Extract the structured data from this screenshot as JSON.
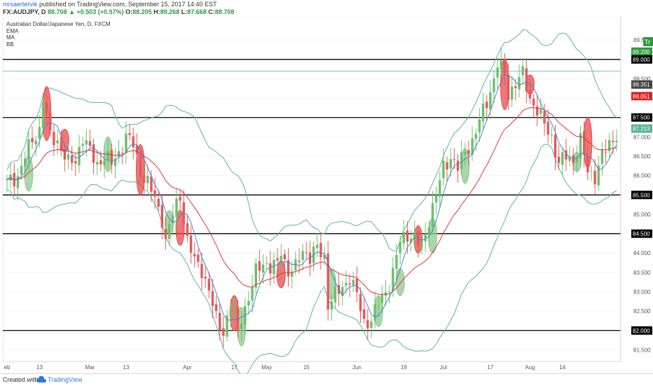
{
  "header": {
    "user": "mrsaertervik",
    "published": " published on TradingView.com, September 15, 2017 14:40 EST",
    "symbol": "FX:AUDJPY, D",
    "last": "88.708",
    "change": "+0.503 (+0.57%)",
    "open": "88.205",
    "high": "89.268",
    "low": "87.668",
    "close": "88.708"
  },
  "footer": {
    "created_with": "Created with",
    "brand": "TradingView"
  },
  "colors": {
    "bull": "#6cbf6c",
    "bear": "#e05a5a",
    "ema": "#d9363e",
    "ma": "#4b86c8",
    "bb": "#57b49b",
    "green_highlight": "#8fc88f",
    "red_highlight": "#e84a4a",
    "level_line": "#000000"
  },
  "chart_data": {
    "type": "candlestick",
    "title": "Australian Dollar/Japanese Yen, D, FXCM",
    "indicators": [
      "EMA",
      "MA",
      "BB"
    ],
    "ylim": [
      81.2,
      90.1
    ],
    "y_ticks": [
      "89.500",
      "89.000",
      "88.500",
      "88.000",
      "87.500",
      "87.000",
      "86.500",
      "86.000",
      "85.500",
      "85.000",
      "84.500",
      "84.000",
      "83.500",
      "83.000",
      "82.500",
      "82.000",
      "81.500"
    ],
    "x_ticks": [
      {
        "i": 0,
        "label": "eb"
      },
      {
        "i": 9,
        "label": "13"
      },
      {
        "i": 23,
        "label": "Mar"
      },
      {
        "i": 33,
        "label": "13"
      },
      {
        "i": 50,
        "label": "Apr"
      },
      {
        "i": 63,
        "label": "17"
      },
      {
        "i": 72,
        "label": "May"
      },
      {
        "i": 83,
        "label": "15"
      },
      {
        "i": 97,
        "label": "Jun"
      },
      {
        "i": 110,
        "label": "19"
      },
      {
        "i": 121,
        "label": "Jul"
      },
      {
        "i": 134,
        "label": "17"
      },
      {
        "i": 145,
        "label": "Aug"
      },
      {
        "i": 154,
        "label": "14"
      }
    ],
    "horizontal_levels": [
      89.0,
      87.5,
      85.5,
      84.5,
      82.0
    ],
    "thin_level": 88.7,
    "price_labels": [
      {
        "value": 89.2,
        "text": "89.200",
        "bg": "#2e9a3c"
      },
      {
        "value": 89.0,
        "text": "89.000",
        "bg": "#000000"
      },
      {
        "value": 88.351,
        "text": "88.351",
        "bg": "#444444"
      },
      {
        "value": 88.051,
        "text": "88.051",
        "bg": "#e02020"
      },
      {
        "value": 87.5,
        "text": "87.500",
        "bg": "#000000"
      },
      {
        "value": 87.213,
        "text": "87.213",
        "bg": "#57b49b"
      },
      {
        "value": 85.5,
        "text": "85.500",
        "bg": "#000000"
      },
      {
        "value": 84.5,
        "text": "84.500",
        "bg": "#000000"
      },
      {
        "value": 82.0,
        "text": "82.000",
        "bg": "#000000"
      }
    ],
    "waypoints": [
      [
        0,
        85.8
      ],
      [
        3,
        86.0
      ],
      [
        5,
        86.5
      ],
      [
        7,
        86.9
      ],
      [
        9,
        87.2
      ],
      [
        10,
        88.0
      ],
      [
        12,
        87.0
      ],
      [
        14,
        86.9
      ],
      [
        17,
        86.3
      ],
      [
        19,
        86.4
      ],
      [
        21,
        87.0
      ],
      [
        23,
        86.6
      ],
      [
        25,
        86.3
      ],
      [
        27,
        86.5
      ],
      [
        29,
        86.3
      ],
      [
        31,
        86.6
      ],
      [
        33,
        87.0
      ],
      [
        35,
        86.8
      ],
      [
        37,
        86.1
      ],
      [
        39,
        85.8
      ],
      [
        41,
        85.4
      ],
      [
        43,
        84.9
      ],
      [
        44,
        84.3
      ],
      [
        46,
        85.0
      ],
      [
        48,
        85.5
      ],
      [
        50,
        84.3
      ],
      [
        52,
        83.8
      ],
      [
        54,
        83.6
      ],
      [
        56,
        83.0
      ],
      [
        58,
        82.3
      ],
      [
        60,
        82.0
      ],
      [
        62,
        82.6
      ],
      [
        63,
        82.5
      ],
      [
        64,
        81.9
      ],
      [
        65,
        82.4
      ],
      [
        67,
        82.8
      ],
      [
        69,
        83.5
      ],
      [
        71,
        83.8
      ],
      [
        73,
        83.6
      ],
      [
        75,
        83.7
      ],
      [
        76,
        84.1
      ],
      [
        78,
        83.5
      ],
      [
        80,
        83.6
      ],
      [
        82,
        84.1
      ],
      [
        84,
        83.9
      ],
      [
        86,
        84.1
      ],
      [
        88,
        83.9
      ],
      [
        89,
        82.7
      ],
      [
        91,
        82.9
      ],
      [
        93,
        83.1
      ],
      [
        95,
        83.4
      ],
      [
        97,
        82.9
      ],
      [
        99,
        82.2
      ],
      [
        101,
        82.3
      ],
      [
        103,
        82.7
      ],
      [
        105,
        83.0
      ],
      [
        107,
        83.5
      ],
      [
        109,
        84.3
      ],
      [
        111,
        84.5
      ],
      [
        113,
        84.4
      ],
      [
        115,
        84.1
      ],
      [
        117,
        84.9
      ],
      [
        119,
        85.5
      ],
      [
        121,
        86.2
      ],
      [
        123,
        86.5
      ],
      [
        125,
        86.2
      ],
      [
        127,
        86.6
      ],
      [
        129,
        86.9
      ],
      [
        131,
        87.4
      ],
      [
        133,
        87.9
      ],
      [
        135,
        88.5
      ],
      [
        136,
        88.9
      ],
      [
        138,
        88.6
      ],
      [
        139,
        88.1
      ],
      [
        141,
        88.4
      ],
      [
        143,
        88.6
      ],
      [
        145,
        88.0
      ],
      [
        147,
        87.7
      ],
      [
        149,
        87.3
      ],
      [
        151,
        87.0
      ],
      [
        153,
        86.3
      ],
      [
        155,
        86.5
      ],
      [
        157,
        86.4
      ],
      [
        159,
        86.9
      ],
      [
        161,
        86.1
      ],
      [
        163,
        86.0
      ],
      [
        165,
        86.5
      ],
      [
        167,
        86.8
      ],
      [
        169,
        87.1
      ]
    ],
    "highlights": [
      {
        "i": 6,
        "low": 85.6,
        "high": 86.5,
        "color": "green"
      },
      {
        "i": 11,
        "low": 86.9,
        "high": 88.3,
        "color": "red"
      },
      {
        "i": 16,
        "low": 86.6,
        "high": 87.2,
        "color": "red"
      },
      {
        "i": 28,
        "low": 86.1,
        "high": 87.0,
        "color": "green"
      },
      {
        "i": 37,
        "low": 85.5,
        "high": 86.8,
        "color": "red"
      },
      {
        "i": 45,
        "low": 84.5,
        "high": 85.1,
        "color": "green"
      },
      {
        "i": 48,
        "low": 84.2,
        "high": 85.1,
        "color": "red"
      },
      {
        "i": 63,
        "low": 82.0,
        "high": 82.9,
        "color": "red"
      },
      {
        "i": 65,
        "low": 81.6,
        "high": 82.6,
        "color": "green"
      },
      {
        "i": 76,
        "low": 83.1,
        "high": 83.8,
        "color": "red"
      },
      {
        "i": 90,
        "low": 82.8,
        "high": 83.6,
        "color": "green"
      },
      {
        "i": 103,
        "low": 82.1,
        "high": 82.9,
        "color": "green"
      },
      {
        "i": 109,
        "low": 82.9,
        "high": 83.6,
        "color": "green"
      },
      {
        "i": 114,
        "low": 84.0,
        "high": 84.7,
        "color": "red"
      },
      {
        "i": 118,
        "low": 84.0,
        "high": 84.9,
        "color": "green"
      },
      {
        "i": 127,
        "low": 85.8,
        "high": 86.7,
        "color": "green"
      },
      {
        "i": 138,
        "low": 87.7,
        "high": 89.0,
        "color": "red"
      },
      {
        "i": 145,
        "low": 88.1,
        "high": 88.6,
        "color": "red"
      },
      {
        "i": 158,
        "low": 86.1,
        "high": 86.6,
        "color": "green"
      },
      {
        "i": 161,
        "low": 86.2,
        "high": 87.5,
        "color": "red"
      }
    ]
  }
}
